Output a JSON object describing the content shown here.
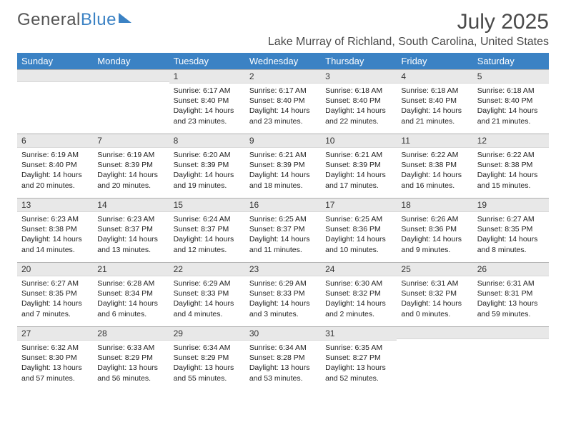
{
  "logo": {
    "text_gray": "General",
    "text_blue": "Blue"
  },
  "header": {
    "month_title": "July 2025",
    "location": "Lake Murray of Richland, South Carolina, United States"
  },
  "colors": {
    "header_bg": "#3b82c4",
    "header_text": "#ffffff",
    "daybar_bg": "#e8e8e8",
    "daybar_border_top": "#b0b0b0",
    "text": "#222222",
    "title_text": "#4a4a4a"
  },
  "weekdays": [
    "Sunday",
    "Monday",
    "Tuesday",
    "Wednesday",
    "Thursday",
    "Friday",
    "Saturday"
  ],
  "weeks": [
    [
      null,
      null,
      {
        "n": "1",
        "sr": "6:17 AM",
        "ss": "8:40 PM",
        "dl": "14 hours and 23 minutes."
      },
      {
        "n": "2",
        "sr": "6:17 AM",
        "ss": "8:40 PM",
        "dl": "14 hours and 23 minutes."
      },
      {
        "n": "3",
        "sr": "6:18 AM",
        "ss": "8:40 PM",
        "dl": "14 hours and 22 minutes."
      },
      {
        "n": "4",
        "sr": "6:18 AM",
        "ss": "8:40 PM",
        "dl": "14 hours and 21 minutes."
      },
      {
        "n": "5",
        "sr": "6:18 AM",
        "ss": "8:40 PM",
        "dl": "14 hours and 21 minutes."
      }
    ],
    [
      {
        "n": "6",
        "sr": "6:19 AM",
        "ss": "8:40 PM",
        "dl": "14 hours and 20 minutes."
      },
      {
        "n": "7",
        "sr": "6:19 AM",
        "ss": "8:39 PM",
        "dl": "14 hours and 20 minutes."
      },
      {
        "n": "8",
        "sr": "6:20 AM",
        "ss": "8:39 PM",
        "dl": "14 hours and 19 minutes."
      },
      {
        "n": "9",
        "sr": "6:21 AM",
        "ss": "8:39 PM",
        "dl": "14 hours and 18 minutes."
      },
      {
        "n": "10",
        "sr": "6:21 AM",
        "ss": "8:39 PM",
        "dl": "14 hours and 17 minutes."
      },
      {
        "n": "11",
        "sr": "6:22 AM",
        "ss": "8:38 PM",
        "dl": "14 hours and 16 minutes."
      },
      {
        "n": "12",
        "sr": "6:22 AM",
        "ss": "8:38 PM",
        "dl": "14 hours and 15 minutes."
      }
    ],
    [
      {
        "n": "13",
        "sr": "6:23 AM",
        "ss": "8:38 PM",
        "dl": "14 hours and 14 minutes."
      },
      {
        "n": "14",
        "sr": "6:23 AM",
        "ss": "8:37 PM",
        "dl": "14 hours and 13 minutes."
      },
      {
        "n": "15",
        "sr": "6:24 AM",
        "ss": "8:37 PM",
        "dl": "14 hours and 12 minutes."
      },
      {
        "n": "16",
        "sr": "6:25 AM",
        "ss": "8:37 PM",
        "dl": "14 hours and 11 minutes."
      },
      {
        "n": "17",
        "sr": "6:25 AM",
        "ss": "8:36 PM",
        "dl": "14 hours and 10 minutes."
      },
      {
        "n": "18",
        "sr": "6:26 AM",
        "ss": "8:36 PM",
        "dl": "14 hours and 9 minutes."
      },
      {
        "n": "19",
        "sr": "6:27 AM",
        "ss": "8:35 PM",
        "dl": "14 hours and 8 minutes."
      }
    ],
    [
      {
        "n": "20",
        "sr": "6:27 AM",
        "ss": "8:35 PM",
        "dl": "14 hours and 7 minutes."
      },
      {
        "n": "21",
        "sr": "6:28 AM",
        "ss": "8:34 PM",
        "dl": "14 hours and 6 minutes."
      },
      {
        "n": "22",
        "sr": "6:29 AM",
        "ss": "8:33 PM",
        "dl": "14 hours and 4 minutes."
      },
      {
        "n": "23",
        "sr": "6:29 AM",
        "ss": "8:33 PM",
        "dl": "14 hours and 3 minutes."
      },
      {
        "n": "24",
        "sr": "6:30 AM",
        "ss": "8:32 PM",
        "dl": "14 hours and 2 minutes."
      },
      {
        "n": "25",
        "sr": "6:31 AM",
        "ss": "8:32 PM",
        "dl": "14 hours and 0 minutes."
      },
      {
        "n": "26",
        "sr": "6:31 AM",
        "ss": "8:31 PM",
        "dl": "13 hours and 59 minutes."
      }
    ],
    [
      {
        "n": "27",
        "sr": "6:32 AM",
        "ss": "8:30 PM",
        "dl": "13 hours and 57 minutes."
      },
      {
        "n": "28",
        "sr": "6:33 AM",
        "ss": "8:29 PM",
        "dl": "13 hours and 56 minutes."
      },
      {
        "n": "29",
        "sr": "6:34 AM",
        "ss": "8:29 PM",
        "dl": "13 hours and 55 minutes."
      },
      {
        "n": "30",
        "sr": "6:34 AM",
        "ss": "8:28 PM",
        "dl": "13 hours and 53 minutes."
      },
      {
        "n": "31",
        "sr": "6:35 AM",
        "ss": "8:27 PM",
        "dl": "13 hours and 52 minutes."
      },
      null,
      null
    ]
  ],
  "labels": {
    "sunrise": "Sunrise:",
    "sunset": "Sunset:",
    "daylight": "Daylight:"
  }
}
